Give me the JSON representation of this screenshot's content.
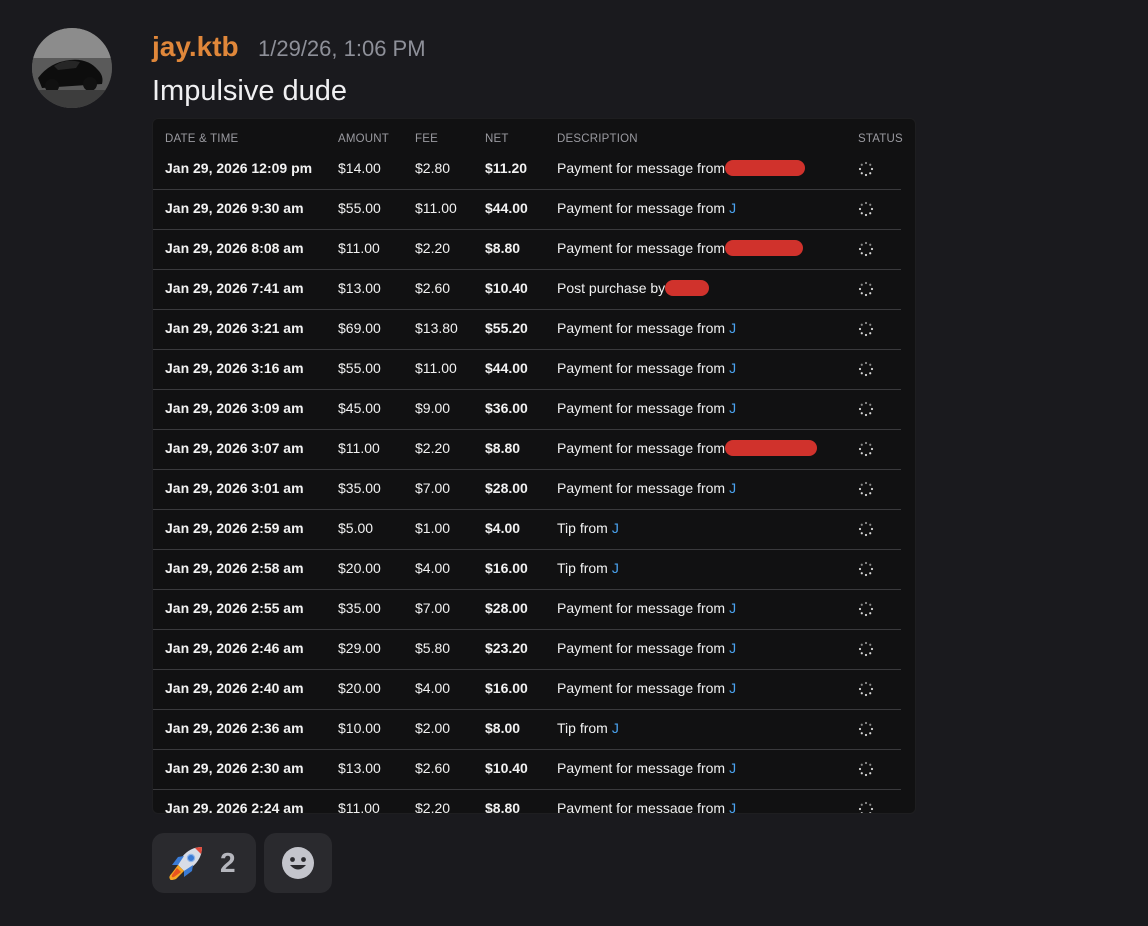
{
  "message": {
    "username": "jay.ktb",
    "timestamp": "1/29/26, 1:06 PM",
    "text": "Impulsive dude",
    "username_color": "#e0873a"
  },
  "table": {
    "headers": {
      "date": "DATE & TIME",
      "amount": "AMOUNT",
      "fee": "FEE",
      "net": "NET",
      "description": "DESCRIPTION",
      "status": "STATUS"
    },
    "rows": [
      {
        "date": "Jan 29, 2026 12:09 pm",
        "amount": "$14.00",
        "fee": "$2.80",
        "net": "$11.20",
        "desc": "Payment for message from",
        "who": "",
        "redacted": true
      },
      {
        "date": "Jan 29, 2026 9:30 am",
        "amount": "$55.00",
        "fee": "$11.00",
        "net": "$44.00",
        "desc": "Payment for message from",
        "who": "J",
        "redacted": false
      },
      {
        "date": "Jan 29, 2026 8:08 am",
        "amount": "$11.00",
        "fee": "$2.20",
        "net": "$8.80",
        "desc": "Payment for message from",
        "who": "",
        "redacted": true
      },
      {
        "date": "Jan 29, 2026 7:41 am",
        "amount": "$13.00",
        "fee": "$2.60",
        "net": "$10.40",
        "desc": "Post purchase by",
        "who": "",
        "redacted": true
      },
      {
        "date": "Jan 29, 2026 3:21 am",
        "amount": "$69.00",
        "fee": "$13.80",
        "net": "$55.20",
        "desc": "Payment for message from",
        "who": "J",
        "redacted": false
      },
      {
        "date": "Jan 29, 2026 3:16 am",
        "amount": "$55.00",
        "fee": "$11.00",
        "net": "$44.00",
        "desc": "Payment for message from",
        "who": "J",
        "redacted": false
      },
      {
        "date": "Jan 29, 2026 3:09 am",
        "amount": "$45.00",
        "fee": "$9.00",
        "net": "$36.00",
        "desc": "Payment for message from",
        "who": "J",
        "redacted": false
      },
      {
        "date": "Jan 29, 2026 3:07 am",
        "amount": "$11.00",
        "fee": "$2.20",
        "net": "$8.80",
        "desc": "Payment for message from",
        "who": "",
        "redacted": true
      },
      {
        "date": "Jan 29, 2026 3:01 am",
        "amount": "$35.00",
        "fee": "$7.00",
        "net": "$28.00",
        "desc": "Payment for message from",
        "who": "J",
        "redacted": false
      },
      {
        "date": "Jan 29, 2026 2:59 am",
        "amount": "$5.00",
        "fee": "$1.00",
        "net": "$4.00",
        "desc": "Tip from",
        "who": "J",
        "redacted": false
      },
      {
        "date": "Jan 29, 2026 2:58 am",
        "amount": "$20.00",
        "fee": "$4.00",
        "net": "$16.00",
        "desc": "Tip from",
        "who": "J",
        "redacted": false
      },
      {
        "date": "Jan 29, 2026 2:55 am",
        "amount": "$35.00",
        "fee": "$7.00",
        "net": "$28.00",
        "desc": "Payment for message from",
        "who": "J",
        "redacted": false
      },
      {
        "date": "Jan 29, 2026 2:46 am",
        "amount": "$29.00",
        "fee": "$5.80",
        "net": "$23.20",
        "desc": "Payment for message from",
        "who": "J",
        "redacted": false
      },
      {
        "date": "Jan 29, 2026 2:40 am",
        "amount": "$20.00",
        "fee": "$4.00",
        "net": "$16.00",
        "desc": "Payment for message from",
        "who": "J",
        "redacted": false
      },
      {
        "date": "Jan 29, 2026 2:36 am",
        "amount": "$10.00",
        "fee": "$2.00",
        "net": "$8.00",
        "desc": "Tip from",
        "who": "J",
        "redacted": false
      },
      {
        "date": "Jan 29, 2026 2:30 am",
        "amount": "$13.00",
        "fee": "$2.60",
        "net": "$10.40",
        "desc": "Payment for message from",
        "who": "J",
        "redacted": false
      },
      {
        "date": "Jan 29, 2026 2:24 am",
        "amount": "$11.00",
        "fee": "$2.20",
        "net": "$8.80",
        "desc": "Payment for message from",
        "who": "J",
        "redacted": false
      }
    ],
    "status_icon": "loading-spinner-icon",
    "redaction_color": "#d0322c",
    "link_color": "#4aa3f0"
  },
  "reactions": [
    {
      "icon": "rocket-icon",
      "count": "2"
    },
    {
      "icon": "add-reaction-smile-icon"
    }
  ]
}
